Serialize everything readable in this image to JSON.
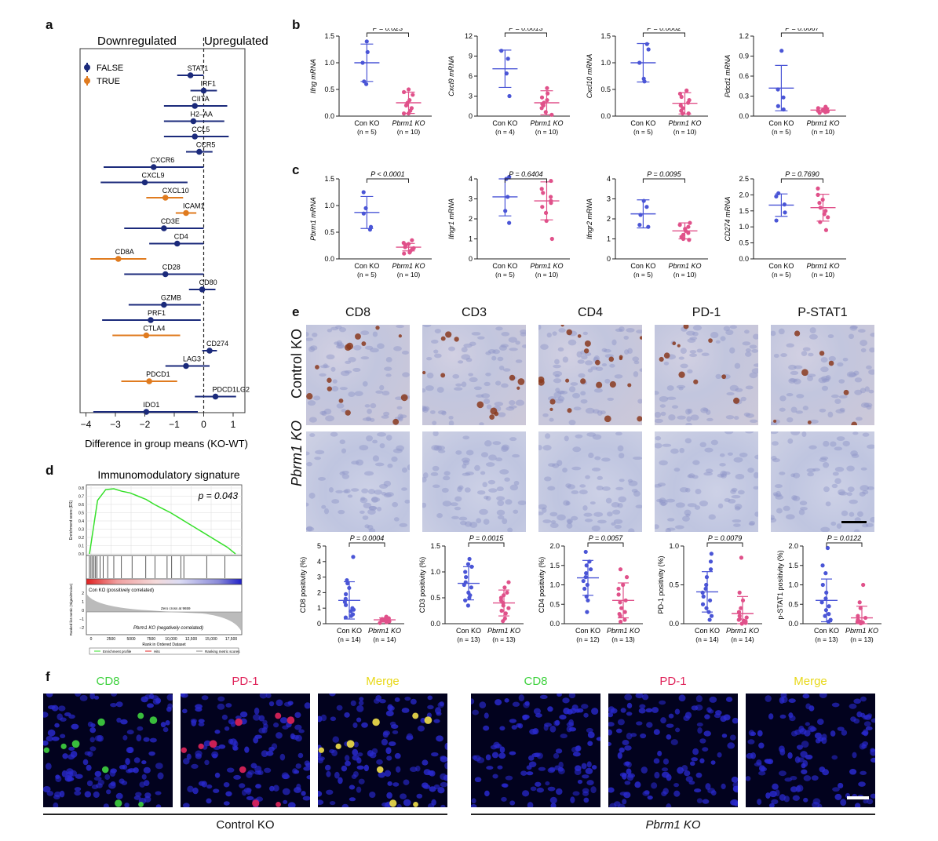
{
  "panels": {
    "a": "a",
    "b": "b",
    "c": "c",
    "d": "d",
    "e": "e",
    "f": "f"
  },
  "chart_a": {
    "type": "forest",
    "header_left": "Downregulated",
    "header_right": "Upregulated",
    "legend": [
      {
        "label": "FALSE",
        "color": "#1b2a7b"
      },
      {
        "label": "TRUE",
        "color": "#e07b1f"
      }
    ],
    "xlabel": "Difference in group means (KO-WT)",
    "xticks": [
      "−4",
      "−3",
      "−2",
      "−1",
      "0",
      "1"
    ],
    "xlim": [
      -4.2,
      1.4
    ],
    "genes": [
      {
        "name": "STAT1",
        "est": -0.45,
        "lo": -0.9,
        "hi": 0.0,
        "sig": false
      },
      {
        "name": "IRF1",
        "est": 0.0,
        "lo": -0.45,
        "hi": 0.45,
        "sig": false
      },
      {
        "name": "CIITA",
        "est": -0.3,
        "lo": -1.35,
        "hi": 0.8,
        "sig": false
      },
      {
        "name": "H2–AA",
        "est": -0.35,
        "lo": -1.35,
        "hi": 0.7,
        "sig": false
      },
      {
        "name": "CCL5",
        "est": -0.3,
        "lo": -1.35,
        "hi": 0.85,
        "sig": false
      },
      {
        "name": "CCR5",
        "est": -0.15,
        "lo": -0.6,
        "hi": 0.3,
        "sig": false
      },
      {
        "name": "CXCR6",
        "est": -1.7,
        "lo": -3.4,
        "hi": 0.0,
        "sig": false
      },
      {
        "name": "CXCL9",
        "est": -2.0,
        "lo": -3.5,
        "hi": -0.55,
        "sig": false
      },
      {
        "name": "CXCL10",
        "est": -1.3,
        "lo": -1.95,
        "hi": -0.7,
        "sig": true
      },
      {
        "name": "ICAM1",
        "est": -0.6,
        "lo": -0.95,
        "hi": -0.25,
        "sig": true
      },
      {
        "name": "CD3E",
        "est": -1.35,
        "lo": -2.7,
        "hi": 0.0,
        "sig": false
      },
      {
        "name": "CD4",
        "est": -0.9,
        "lo": -1.85,
        "hi": 0.0,
        "sig": false
      },
      {
        "name": "CD8A",
        "est": -2.9,
        "lo": -3.85,
        "hi": -1.95,
        "sig": true
      },
      {
        "name": "CD28",
        "est": -1.3,
        "lo": -2.7,
        "hi": 0.0,
        "sig": false
      },
      {
        "name": "CD80",
        "est": -0.05,
        "lo": -0.5,
        "hi": 0.4,
        "sig": false
      },
      {
        "name": "GZMB",
        "est": -1.35,
        "lo": -2.55,
        "hi": -0.1,
        "sig": false
      },
      {
        "name": "PRF1",
        "est": -1.8,
        "lo": -3.45,
        "hi": -0.1,
        "sig": false
      },
      {
        "name": "CTLA4",
        "est": -1.95,
        "lo": -3.1,
        "hi": -0.8,
        "sig": true
      },
      {
        "name": "CD274",
        "est": 0.2,
        "lo": -0.05,
        "hi": 0.45,
        "sig": false
      },
      {
        "name": "LAG3",
        "est": -0.6,
        "lo": -1.3,
        "hi": 0.2,
        "sig": false
      },
      {
        "name": "PDCD1",
        "est": -1.85,
        "lo": -2.8,
        "hi": -0.9,
        "sig": true
      },
      {
        "name": "PDCD1LG2",
        "est": 0.4,
        "lo": -0.3,
        "hi": 1.1,
        "sig": false
      },
      {
        "name": "IDO1",
        "est": -1.95,
        "lo": -3.75,
        "hi": -0.2,
        "sig": false
      }
    ]
  },
  "chart_b": [
    {
      "ylabel": "Ifng mRNA",
      "ylim": [
        0,
        1.5
      ],
      "yticks": [
        "0.0",
        "0.5",
        "1.0",
        "1.5"
      ],
      "yvals": [
        0,
        0.5,
        1.0,
        1.5
      ],
      "p": "P = 0.023",
      "groups": [
        {
          "label": "Con KO",
          "n": "(n = 5)",
          "mean": 1.0,
          "sd": 0.35,
          "points": [
            1.4,
            1.2,
            1.0,
            0.65,
            0.6
          ]
        },
        {
          "label": "Pbrm1 KO",
          "n": "(n = 10)",
          "mean": 0.25,
          "sd": 0.2,
          "points": [
            0.5,
            0.45,
            0.4,
            0.3,
            0.25,
            0.2,
            0.15,
            0.1,
            0.05,
            0.05
          ]
        }
      ]
    },
    {
      "ylabel": "Cxcl9 mRNA",
      "ylim": [
        0,
        12
      ],
      "yticks": [
        "0",
        "3",
        "6",
        "9",
        "12"
      ],
      "yvals": [
        0,
        3,
        6,
        9,
        12
      ],
      "p": "P = 0.0013",
      "groups": [
        {
          "label": "Con KO",
          "n": "(n = 4)",
          "mean": 7.1,
          "sd": 2.8,
          "points": [
            9.8,
            8.6,
            6.4,
            3.0
          ]
        },
        {
          "label": "Pbrm1 KO",
          "n": "(n = 10)",
          "mean": 2.0,
          "sd": 1.8,
          "points": [
            4.2,
            3.4,
            2.8,
            2.4,
            2.0,
            1.8,
            1.6,
            1.2,
            0.6,
            0.2
          ]
        }
      ]
    },
    {
      "ylabel": "Cxcl10 mRNA",
      "ylim": [
        0,
        1.5
      ],
      "yticks": [
        "0.0",
        "0.5",
        "1.0",
        "1.5"
      ],
      "yvals": [
        0,
        0.5,
        1.0,
        1.5
      ],
      "p": "P = 0.0002",
      "groups": [
        {
          "label": "Con KO",
          "n": "(n = 5)",
          "mean": 1.0,
          "sd": 0.36,
          "points": [
            1.35,
            1.25,
            1.0,
            0.7,
            0.65
          ]
        },
        {
          "label": "Pbrm1 KO",
          "n": "(n = 10)",
          "mean": 0.24,
          "sd": 0.2,
          "points": [
            0.48,
            0.42,
            0.36,
            0.3,
            0.25,
            0.2,
            0.15,
            0.1,
            0.05,
            0.05
          ]
        }
      ]
    },
    {
      "ylabel": "Pdcd1 mRNA",
      "ylim": [
        0,
        1.2
      ],
      "yticks": [
        "0.0",
        "0.3",
        "0.6",
        "0.9",
        "1.2"
      ],
      "yvals": [
        0,
        0.3,
        0.6,
        0.9,
        1.2
      ],
      "p": "P = 0.0067",
      "groups": [
        {
          "label": "Con KO",
          "n": "(n = 5)",
          "mean": 0.42,
          "sd": 0.34,
          "points": [
            0.98,
            0.4,
            0.28,
            0.15,
            0.1
          ]
        },
        {
          "label": "Pbrm1 KO",
          "n": "(n = 10)",
          "mean": 0.09,
          "sd": 0.03,
          "points": [
            0.14,
            0.12,
            0.11,
            0.1,
            0.09,
            0.08,
            0.08,
            0.07,
            0.06,
            0.05
          ]
        }
      ]
    }
  ],
  "chart_c": [
    {
      "ylabel": "Pbrm1 mRNA",
      "ylim": [
        0,
        1.5
      ],
      "yticks": [
        "0.0",
        "0.5",
        "1.0",
        "1.5"
      ],
      "yvals": [
        0,
        0.5,
        1.0,
        1.5
      ],
      "p": "P < 0.0001",
      "groups": [
        {
          "label": "Con KO",
          "n": "(n = 5)",
          "mean": 0.87,
          "sd": 0.3,
          "points": [
            1.25,
            0.95,
            0.85,
            0.6,
            0.55
          ]
        },
        {
          "label": "Pbrm1 KO",
          "n": "(n = 10)",
          "mean": 0.22,
          "sd": 0.07,
          "points": [
            0.35,
            0.3,
            0.28,
            0.25,
            0.22,
            0.2,
            0.18,
            0.15,
            0.12,
            0.1
          ]
        }
      ]
    },
    {
      "ylabel": "Ifngr1 mRNA",
      "ylim": [
        0,
        4
      ],
      "yticks": [
        "0",
        "1",
        "2",
        "3",
        "4"
      ],
      "yvals": [
        0,
        1,
        2,
        3,
        4
      ],
      "p": "P = 0.6404",
      "groups": [
        {
          "label": "Con KO",
          "n": "(n = 5)",
          "mean": 3.1,
          "sd": 0.95,
          "points": [
            4.1,
            4.0,
            3.1,
            2.4,
            1.8
          ]
        },
        {
          "label": "Pbrm1 KO",
          "n": "(n = 10)",
          "mean": 2.9,
          "sd": 0.95,
          "points": [
            3.9,
            3.5,
            3.3,
            3.1,
            2.9,
            2.8,
            2.6,
            2.3,
            1.9,
            1.0
          ]
        }
      ]
    },
    {
      "ylabel": "Ifngr2 mRNA",
      "ylim": [
        0,
        4
      ],
      "yticks": [
        "0",
        "1",
        "2",
        "3",
        "4"
      ],
      "yvals": [
        0,
        1,
        2,
        3,
        4
      ],
      "p": "P = 0.0095",
      "groups": [
        {
          "label": "Con KO",
          "n": "(n = 5)",
          "mean": 2.25,
          "sd": 0.7,
          "points": [
            2.9,
            2.6,
            2.2,
            1.7,
            1.6
          ]
        },
        {
          "label": "Pbrm1 KO",
          "n": "(n = 10)",
          "mean": 1.4,
          "sd": 0.4,
          "points": [
            1.8,
            1.7,
            1.6,
            1.5,
            1.4,
            1.3,
            1.2,
            1.1,
            1.0,
            0.95
          ]
        }
      ]
    },
    {
      "ylabel": "CD274 mRNA",
      "ylim": [
        0,
        2.5
      ],
      "yticks": [
        "0.0",
        "0.5",
        "1.0",
        "1.5",
        "2.0",
        "2.5"
      ],
      "yvals": [
        0,
        0.5,
        1.0,
        1.5,
        2.0,
        2.5
      ],
      "p": "P = 0.7690",
      "groups": [
        {
          "label": "Con KO",
          "n": "(n = 5)",
          "mean": 1.68,
          "sd": 0.35,
          "points": [
            2.05,
            1.95,
            1.7,
            1.45,
            1.2
          ]
        },
        {
          "label": "Pbrm1 KO",
          "n": "(n = 10)",
          "mean": 1.6,
          "sd": 0.42,
          "points": [
            2.2,
            2.0,
            1.85,
            1.75,
            1.6,
            1.5,
            1.4,
            1.3,
            1.15,
            0.9
          ]
        }
      ]
    }
  ],
  "chart_e": [
    {
      "ylabel": "CD8 positivity (%)",
      "ylim": [
        0,
        5
      ],
      "yticks": [
        "0",
        "1",
        "2",
        "3",
        "4",
        "5"
      ],
      "yvals": [
        0,
        1,
        2,
        3,
        4,
        5
      ],
      "p": "P = 0.0004",
      "groups": [
        {
          "label": "Con KO",
          "n": "(n = 14)",
          "mean": 1.5,
          "sd": 1.2,
          "points": [
            4.3,
            2.8,
            2.6,
            2.3,
            1.9,
            1.6,
            1.4,
            1.2,
            1.0,
            0.9,
            0.8,
            0.6,
            0.5,
            0.4
          ]
        },
        {
          "label": "Pbrm1 KO",
          "n": "(n = 14)",
          "mean": 0.25,
          "sd": 0.12,
          "points": [
            0.45,
            0.4,
            0.35,
            0.3,
            0.3,
            0.25,
            0.25,
            0.2,
            0.2,
            0.15,
            0.15,
            0.1,
            0.1,
            0.05
          ]
        }
      ]
    },
    {
      "ylabel": "CD3 positivity (%)",
      "ylim": [
        0,
        1.5
      ],
      "yticks": [
        "0.0",
        "0.5",
        "1.0",
        "1.5"
      ],
      "yvals": [
        0,
        0.5,
        1.0,
        1.5
      ],
      "p": "P = 0.0015",
      "groups": [
        {
          "label": "Con KO",
          "n": "(n = 13)",
          "mean": 0.78,
          "sd": 0.32,
          "points": [
            1.25,
            1.15,
            1.1,
            1.0,
            0.9,
            0.8,
            0.75,
            0.7,
            0.6,
            0.55,
            0.5,
            0.45,
            0.35
          ]
        },
        {
          "label": "Pbrm1 KO",
          "n": "(n = 13)",
          "mean": 0.4,
          "sd": 0.25,
          "points": [
            0.8,
            0.7,
            0.6,
            0.55,
            0.5,
            0.45,
            0.4,
            0.35,
            0.3,
            0.25,
            0.2,
            0.1,
            0.05
          ]
        }
      ]
    },
    {
      "ylabel": "CD4 positivity (%)",
      "ylim": [
        0,
        2.0
      ],
      "yticks": [
        "0.0",
        "0.5",
        "1.0",
        "1.5",
        "2.0"
      ],
      "yvals": [
        0,
        0.5,
        1.0,
        1.5,
        2.0
      ],
      "p": "P = 0.0057",
      "groups": [
        {
          "label": "Con KO",
          "n": "(n = 12)",
          "mean": 1.18,
          "sd": 0.45,
          "points": [
            1.85,
            1.6,
            1.5,
            1.4,
            1.3,
            1.2,
            1.1,
            1.0,
            0.9,
            0.7,
            0.6,
            0.3
          ]
        },
        {
          "label": "Pbrm1 KO",
          "n": "(n = 13)",
          "mean": 0.6,
          "sd": 0.45,
          "points": [
            1.4,
            1.2,
            1.0,
            0.9,
            0.75,
            0.6,
            0.55,
            0.4,
            0.3,
            0.25,
            0.2,
            0.1,
            0.05
          ]
        }
      ]
    },
    {
      "ylabel": "PD-1 positivity (%)",
      "ylim": [
        0,
        1.0
      ],
      "yticks": [
        "0.0",
        "0.5",
        "1.0"
      ],
      "yvals": [
        0,
        0.5,
        1.0
      ],
      "p": "P = 0.0079",
      "groups": [
        {
          "label": "Con KO",
          "n": "(n = 14)",
          "mean": 0.41,
          "sd": 0.26,
          "points": [
            0.9,
            0.8,
            0.7,
            0.6,
            0.5,
            0.45,
            0.4,
            0.35,
            0.3,
            0.25,
            0.2,
            0.15,
            0.1,
            0.05
          ]
        },
        {
          "label": "Pbrm1 KO",
          "n": "(n = 14)",
          "mean": 0.13,
          "sd": 0.22,
          "points": [
            0.85,
            0.4,
            0.3,
            0.2,
            0.15,
            0.1,
            0.08,
            0.06,
            0.05,
            0.04,
            0.03,
            0.02,
            0.01,
            0.0
          ]
        }
      ]
    },
    {
      "ylabel": "p-STAT1 positivity (%)",
      "ylim": [
        0,
        2.0
      ],
      "yticks": [
        "0.0",
        "0.5",
        "1.0",
        "1.5",
        "2.0"
      ],
      "yvals": [
        0,
        0.5,
        1.0,
        1.5,
        2.0
      ],
      "p": "P = 0.0122",
      "groups": [
        {
          "label": "Con KO",
          "n": "(n = 13)",
          "mean": 0.6,
          "sd": 0.55,
          "points": [
            1.95,
            1.5,
            1.3,
            1.0,
            0.8,
            0.65,
            0.55,
            0.45,
            0.35,
            0.25,
            0.2,
            0.1,
            0.05
          ]
        },
        {
          "label": "Pbrm1 KO",
          "n": "(n = 13)",
          "mean": 0.15,
          "sd": 0.3,
          "points": [
            1.0,
            0.55,
            0.4,
            0.2,
            0.15,
            0.1,
            0.08,
            0.06,
            0.05,
            0.04,
            0.03,
            0.02,
            0.01
          ]
        }
      ]
    }
  ],
  "gsea_d": {
    "title": "Immunomodulatory signature",
    "p": "p = 0.043",
    "es_label": "Enrichment score (ES)",
    "rank_label": "Ranked list metric (Signal2Noise)",
    "es_ticks": [
      "0.8",
      "0.7",
      "0.6",
      "0.5",
      "0.4",
      "0.3",
      "0.2",
      "0.1",
      "0.0"
    ],
    "rank_ticks": [
      "2",
      "1",
      "0",
      "−1",
      "−2"
    ],
    "x_ticks": [
      "0",
      "2500",
      "5000",
      "7500",
      "10,000",
      "12,500",
      "15,000",
      "17,500"
    ],
    "xlabel": "Rank in Ordered Dataset",
    "pos_label": "Con KO (possitively correlated)",
    "neg_label": "Pbrm1 KO (negatively correlated)",
    "zero_cross": "Zero cross at 9659",
    "legend": [
      "Enrichment profile",
      "Hits",
      "Ranking metric scores"
    ],
    "es_curve": [
      0.0,
      0.65,
      0.78,
      0.79,
      0.76,
      0.74,
      0.7,
      0.66,
      0.6,
      0.55,
      0.5,
      0.44,
      0.38,
      0.32,
      0.26,
      0.2,
      0.14,
      0.08,
      0.0
    ],
    "hits": [
      0.01,
      0.02,
      0.03,
      0.04,
      0.05,
      0.06,
      0.08,
      0.1,
      0.13,
      0.17,
      0.22,
      0.29,
      0.38,
      0.44,
      0.52,
      0.55,
      0.61,
      0.63,
      0.78,
      0.9
    ]
  },
  "ihc_e": {
    "columns": [
      "CD8",
      "CD3",
      "CD4",
      "PD-1",
      "P-STAT1"
    ],
    "rows": [
      "Control KO",
      "Pbrm1 KO"
    ]
  },
  "if_f": {
    "ctrl_columns": [
      {
        "label": "CD8",
        "color": "#3fd23f"
      },
      {
        "label": "PD-1",
        "color": "#e0245a"
      },
      {
        "label": "Merge",
        "color": "#e8d818"
      }
    ],
    "ko_columns": [
      {
        "label": "CD8",
        "color": "#3fd23f"
      },
      {
        "label": "PD-1",
        "color": "#e0245a"
      },
      {
        "label": "Merge",
        "color": "#e8d818"
      }
    ],
    "ctrl_label": "Control KO",
    "ko_label": "Pbrm1 KO"
  },
  "colors": {
    "con": "#4a55d6",
    "ko": "#e0518a",
    "navy": "#1b2a7b",
    "orange": "#e07b1f"
  }
}
